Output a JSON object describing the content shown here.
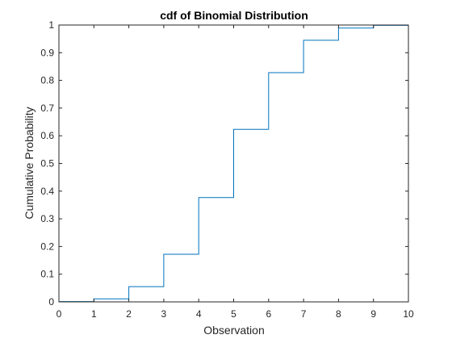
{
  "chart_data": {
    "type": "line",
    "style": "stairs",
    "title": "cdf of Binomial Distribution",
    "xlabel": "Observation",
    "ylabel": "Cumulative Probability",
    "xlim": [
      0,
      10
    ],
    "ylim": [
      0,
      1
    ],
    "grid": false,
    "box": true,
    "xticks": [
      0,
      1,
      2,
      3,
      4,
      5,
      6,
      7,
      8,
      9,
      10
    ],
    "xtick_labels": [
      "0",
      "1",
      "2",
      "3",
      "4",
      "5",
      "6",
      "7",
      "8",
      "9",
      "10"
    ],
    "yticks": [
      0,
      0.1,
      0.2,
      0.3,
      0.4,
      0.5,
      0.6,
      0.7,
      0.8,
      0.9,
      1
    ],
    "ytick_labels": [
      "0",
      "0.1",
      "0.2",
      "0.3",
      "0.4",
      "0.5",
      "0.6",
      "0.7",
      "0.8",
      "0.9",
      "1"
    ],
    "series": [
      {
        "x": [
          0,
          1,
          2,
          3,
          4,
          5,
          6,
          7,
          8,
          9,
          10
        ],
        "values": [
          0.001,
          0.011,
          0.055,
          0.172,
          0.377,
          0.623,
          0.828,
          0.945,
          0.989,
          0.999,
          1.0
        ],
        "color": "#0072BD"
      }
    ],
    "axis_color": "#262626"
  }
}
